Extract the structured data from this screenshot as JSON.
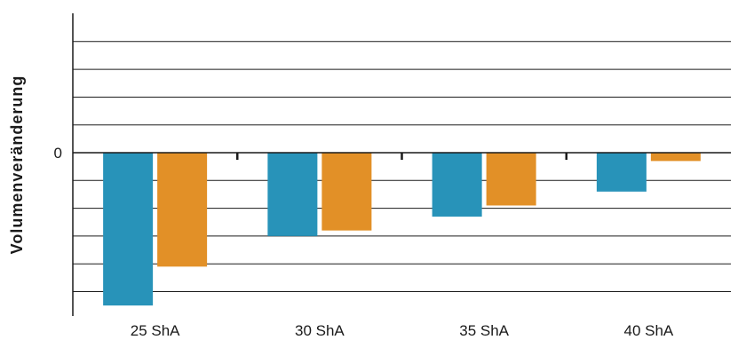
{
  "chart_data": {
    "type": "bar",
    "categories": [
      "25 ShA",
      "30 ShA",
      "35 ShA",
      "40 ShA"
    ],
    "series": [
      {
        "values": [
          -5.5,
          -3.0,
          -2.3,
          -1.4
        ]
      },
      {
        "values": [
          -4.1,
          -2.8,
          -1.9,
          -0.3
        ]
      }
    ],
    "title": "",
    "xlabel": "",
    "ylabel": "Volumenveränderung",
    "zero_label": "0",
    "ylim": [
      -5.8,
      5.0
    ],
    "grid_step": 1,
    "grid": true,
    "colors": [
      "#2893b9",
      "#e29027"
    ]
  }
}
